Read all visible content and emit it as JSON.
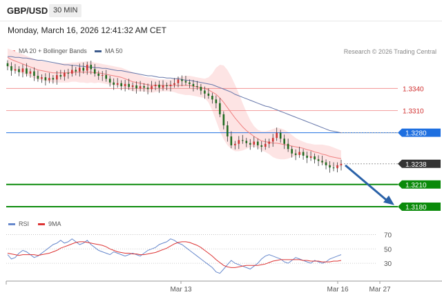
{
  "header": {
    "symbol": "GBP/USD",
    "timeframe": "30 MIN"
  },
  "datetime": "Monday, March 16, 2026 12:41:32 AM CET",
  "legend": {
    "ma20": {
      "label": "MA 20 + Bollinger Bands",
      "color": "#f08080"
    },
    "ma50": {
      "label": "MA 50",
      "color": "#3c5a8c"
    }
  },
  "rsi_legend": {
    "rsi": {
      "label": "RSI",
      "color": "#6688cc"
    },
    "ma9": {
      "label": "9MA",
      "color": "#dd3333"
    }
  },
  "copyright": "Research © 2026 Trading Central",
  "chart_data": [
    {
      "type": "candlestick",
      "ylim": [
        1.318,
        1.3385
      ],
      "x_labels": [
        "Mar 13",
        "Mar 16",
        "Mar 27"
      ],
      "price_levels": [
        {
          "value": 1.334,
          "label": "1.3340",
          "color": "#f08080",
          "style": "thin-red"
        },
        {
          "value": 1.331,
          "label": "1.3310",
          "color": "#f08080",
          "style": "thin-red"
        },
        {
          "value": 1.328,
          "label": "1.3280",
          "color": "#1e6fe0",
          "style": "blue"
        },
        {
          "value": 1.3238,
          "label": "1.3238",
          "color": "#333333",
          "style": "current"
        },
        {
          "value": 1.321,
          "label": "1.3210",
          "color": "#0a8a0a",
          "style": "green"
        },
        {
          "value": 1.318,
          "label": "1.3180",
          "color": "#0a8a0a",
          "style": "green"
        }
      ],
      "forecast_arrow": {
        "from": 1.3236,
        "to": 1.3184,
        "color": "#2a62a8"
      },
      "closes": [
        1.337,
        1.3364,
        1.3366,
        1.3362,
        1.3367,
        1.336,
        1.3363,
        1.3357,
        1.3353,
        1.3355,
        1.3351,
        1.3354,
        1.3352,
        1.3358,
        1.3356,
        1.3361,
        1.336,
        1.3365,
        1.3363,
        1.3368,
        1.3364,
        1.3372,
        1.3366,
        1.336,
        1.3357,
        1.3358,
        1.3353,
        1.3348,
        1.3345,
        1.3347,
        1.3343,
        1.3346,
        1.3342,
        1.3344,
        1.334,
        1.3343,
        1.3341,
        1.3339,
        1.3343,
        1.3345,
        1.3341,
        1.3344,
        1.3343,
        1.3345,
        1.3347,
        1.3352,
        1.335,
        1.3348,
        1.3346,
        1.3343,
        1.3342,
        1.3337,
        1.3333,
        1.333,
        1.3325,
        1.332,
        1.3305,
        1.329,
        1.3275,
        1.3263,
        1.3265,
        1.327,
        1.3269,
        1.3266,
        1.3264,
        1.3268,
        1.3263,
        1.3261,
        1.3265,
        1.3268,
        1.3273,
        1.328,
        1.3272,
        1.3265,
        1.3258,
        1.3252,
        1.325,
        1.3254,
        1.3249,
        1.3246,
        1.3248,
        1.3244,
        1.3242,
        1.324,
        1.3236,
        1.3233,
        1.3232,
        1.3236,
        1.3238
      ],
      "ma20": [
        1.3382,
        1.3379,
        1.3377,
        1.3375,
        1.3373,
        1.3371,
        1.3369,
        1.3367,
        1.3365,
        1.3364,
        1.3363,
        1.3362,
        1.3361,
        1.3361,
        1.3361,
        1.3361,
        1.3361,
        1.3362,
        1.3362,
        1.3362,
        1.3362,
        1.3362,
        1.3362,
        1.3361,
        1.3361,
        1.336,
        1.3359,
        1.3358,
        1.3357,
        1.3356,
        1.3355,
        1.3353,
        1.3351,
        1.3349,
        1.3348,
        1.3347,
        1.3346,
        1.3345,
        1.3344,
        1.3344,
        1.3344,
        1.3344,
        1.3344,
        1.3344,
        1.3344,
        1.3344,
        1.3344,
        1.3344,
        1.3344,
        1.3343,
        1.3342,
        1.3341,
        1.334,
        1.3338,
        1.3335,
        1.3332,
        1.3327,
        1.3321,
        1.3314,
        1.3307,
        1.33,
        1.3294,
        1.3288,
        1.3283,
        1.3279,
        1.3275,
        1.3272,
        1.3269,
        1.3268,
        1.3267,
        1.3266,
        1.3266,
        1.3265,
        1.3264,
        1.3263,
        1.3262,
        1.3261,
        1.326,
        1.3259,
        1.3257,
        1.3256,
        1.3254,
        1.3253,
        1.3251,
        1.325,
        1.3248,
        1.3247,
        1.3246,
        1.3245
      ],
      "bb_upper": [
        1.3394,
        1.3392,
        1.339,
        1.3388,
        1.3386,
        1.3384,
        1.3382,
        1.338,
        1.3378,
        1.3377,
        1.3376,
        1.3375,
        1.3374,
        1.3374,
        1.3374,
        1.3374,
        1.3374,
        1.3375,
        1.3375,
        1.3376,
        1.3376,
        1.3377,
        1.3376,
        1.3375,
        1.3374,
        1.3373,
        1.3372,
        1.3371,
        1.337,
        1.3369,
        1.3368,
        1.3366,
        1.3364,
        1.3362,
        1.336,
        1.3358,
        1.3356,
        1.3355,
        1.3354,
        1.3353,
        1.3352,
        1.3352,
        1.3352,
        1.3352,
        1.3353,
        1.3355,
        1.3356,
        1.3357,
        1.3357,
        1.3356,
        1.3355,
        1.3354,
        1.3353,
        1.3355,
        1.336,
        1.3368,
        1.3372,
        1.3371,
        1.3365,
        1.3356,
        1.3345,
        1.3333,
        1.332,
        1.3308,
        1.3297,
        1.3289,
        1.3284,
        1.3282,
        1.3282,
        1.3283,
        1.3285,
        1.3287,
        1.3286,
        1.3284,
        1.3281,
        1.3277,
        1.3273,
        1.327,
        1.3268,
        1.3266,
        1.3265,
        1.3264,
        1.3264,
        1.3264,
        1.3263,
        1.3262,
        1.326,
        1.3258,
        1.3256
      ],
      "bb_lower": [
        1.337,
        1.3367,
        1.3364,
        1.3362,
        1.336,
        1.3358,
        1.3356,
        1.3354,
        1.3352,
        1.3351,
        1.335,
        1.3349,
        1.3348,
        1.3348,
        1.3348,
        1.3348,
        1.3348,
        1.3349,
        1.3349,
        1.3348,
        1.3348,
        1.3347,
        1.3348,
        1.3347,
        1.3348,
        1.3347,
        1.3346,
        1.3345,
        1.3344,
        1.3343,
        1.3342,
        1.334,
        1.3338,
        1.3336,
        1.3336,
        1.3336,
        1.3336,
        1.3335,
        1.3334,
        1.3335,
        1.3336,
        1.3336,
        1.3336,
        1.3336,
        1.3335,
        1.3333,
        1.3332,
        1.3331,
        1.3331,
        1.333,
        1.3329,
        1.3328,
        1.3327,
        1.3321,
        1.331,
        1.3296,
        1.3282,
        1.3271,
        1.3263,
        1.3258,
        1.3255,
        1.3255,
        1.3256,
        1.3258,
        1.3261,
        1.3261,
        1.326,
        1.3256,
        1.3254,
        1.3251,
        1.3247,
        1.3245,
        1.3244,
        1.3244,
        1.3245,
        1.3247,
        1.3249,
        1.325,
        1.325,
        1.3248,
        1.3247,
        1.3244,
        1.3242,
        1.3238,
        1.3237,
        1.3234,
        1.3234,
        1.3234,
        1.3234
      ],
      "ma50": [
        1.3383,
        1.3383,
        1.3382,
        1.3382,
        1.3381,
        1.3381,
        1.338,
        1.3379,
        1.3378,
        1.3378,
        1.3377,
        1.3376,
        1.3375,
        1.3374,
        1.3373,
        1.3372,
        1.3372,
        1.3371,
        1.3371,
        1.337,
        1.337,
        1.3369,
        1.3369,
        1.3368,
        1.3368,
        1.3367,
        1.3367,
        1.3366,
        1.3365,
        1.3364,
        1.3364,
        1.3363,
        1.3362,
        1.3361,
        1.336,
        1.3359,
        1.3358,
        1.3357,
        1.3357,
        1.3356,
        1.3355,
        1.3355,
        1.3354,
        1.3354,
        1.3353,
        1.3353,
        1.3352,
        1.3351,
        1.3351,
        1.335,
        1.3349,
        1.3348,
        1.3347,
        1.3346,
        1.3345,
        1.3343,
        1.3341,
        1.3339,
        1.3337,
        1.3335,
        1.3332,
        1.333,
        1.3328,
        1.3326,
        1.3324,
        1.3322,
        1.332,
        1.3318,
        1.3316,
        1.3315,
        1.3313,
        1.3311,
        1.3309,
        1.3307,
        1.3305,
        1.3303,
        1.3301,
        1.3299,
        1.3297,
        1.3295,
        1.3293,
        1.3291,
        1.3289,
        1.3287,
        1.3285,
        1.3283,
        1.3282,
        1.3281,
        1.328
      ]
    },
    {
      "type": "line",
      "ylim": [
        10,
        80
      ],
      "ticks": [
        70,
        50,
        30
      ],
      "rsi": [
        42,
        36,
        38,
        44,
        48,
        46,
        42,
        38,
        40,
        44,
        48,
        52,
        56,
        58,
        62,
        58,
        60,
        64,
        60,
        56,
        58,
        62,
        56,
        52,
        48,
        46,
        44,
        42,
        46,
        44,
        42,
        40,
        42,
        44,
        42,
        40,
        44,
        48,
        50,
        52,
        56,
        58,
        60,
        64,
        62,
        58,
        56,
        52,
        48,
        44,
        40,
        36,
        32,
        28,
        24,
        18,
        16,
        22,
        28,
        34,
        30,
        28,
        26,
        24,
        22,
        26,
        30,
        36,
        40,
        42,
        40,
        38,
        36,
        32,
        30,
        34,
        38,
        36,
        34,
        32,
        30,
        34,
        32,
        30,
        32,
        36,
        38,
        40,
        42
      ],
      "ma9": [
        44,
        43,
        42,
        41,
        42,
        42,
        42,
        42,
        41,
        42,
        43,
        44,
        46,
        48,
        51,
        53,
        55,
        57,
        59,
        60,
        60,
        59,
        58,
        57,
        56,
        55,
        53,
        50,
        48,
        46,
        45,
        44,
        44,
        43,
        43,
        42,
        42,
        43,
        44,
        45,
        47,
        49,
        51,
        54,
        57,
        59,
        60,
        60,
        59,
        57,
        55,
        52,
        48,
        44,
        40,
        35,
        31,
        27,
        25,
        24,
        24,
        25,
        26,
        27,
        27,
        27,
        27,
        28,
        29,
        31,
        33,
        34,
        35,
        35,
        35,
        35,
        35,
        35,
        34,
        34,
        33,
        33,
        33,
        32,
        32,
        32,
        33,
        33,
        34
      ]
    }
  ]
}
